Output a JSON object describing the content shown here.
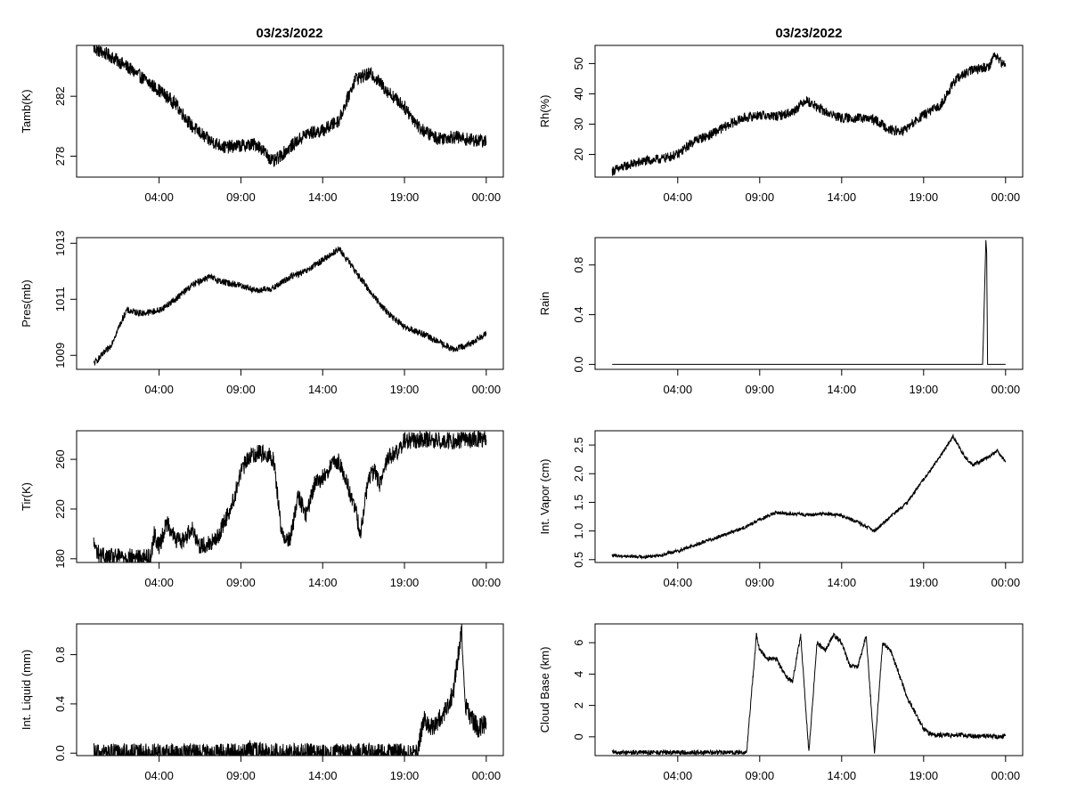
{
  "figure": {
    "titles": [
      "03/23/2022",
      "03/23/2022"
    ]
  },
  "chart_data": [
    {
      "type": "line",
      "ylabel": "Tamb(K)",
      "xlim": [
        0,
        24
      ],
      "ylim": [
        276.6,
        285.4
      ],
      "yticks": [
        278,
        282
      ],
      "xticks": [
        4,
        9,
        14,
        19,
        24
      ],
      "xtick_labels": [
        "04:00",
        "09:00",
        "14:00",
        "19:00",
        "00:00"
      ],
      "x": [
        0,
        1,
        2,
        3,
        4,
        5,
        6,
        7,
        8,
        9,
        10,
        11,
        12,
        13,
        14,
        15,
        16,
        17,
        18,
        19,
        20,
        21,
        22,
        23,
        24
      ],
      "y": [
        285.2,
        284.7,
        284.0,
        283.2,
        282.4,
        281.5,
        280.0,
        279.1,
        278.6,
        278.7,
        278.8,
        277.6,
        278.6,
        279.5,
        279.7,
        280.4,
        283.2,
        283.5,
        282.3,
        281.3,
        279.8,
        279.2,
        279.3,
        279.1,
        279.0
      ],
      "noise": 0.45
    },
    {
      "type": "line",
      "ylabel": "Rh(%)",
      "xlim": [
        0,
        24
      ],
      "ylim": [
        12.5,
        56
      ],
      "yticks": [
        20,
        30,
        40,
        50
      ],
      "xticks": [
        4,
        9,
        14,
        19,
        24
      ],
      "xtick_labels": [
        "04:00",
        "09:00",
        "14:00",
        "19:00",
        "00:00"
      ],
      "x": [
        0,
        1,
        2,
        3,
        4,
        5,
        6,
        7,
        8,
        9,
        10,
        11,
        11.8,
        13,
        14,
        15,
        16,
        17,
        17.7,
        19,
        20,
        21,
        22,
        23,
        23.3,
        24
      ],
      "y": [
        14.5,
        16.5,
        17.8,
        18.5,
        20.0,
        24.5,
        26.5,
        29.5,
        32.0,
        33.0,
        32.5,
        34.0,
        38.0,
        34.0,
        32.0,
        32.0,
        31.5,
        28.0,
        27.5,
        33.0,
        36.0,
        45.0,
        48.0,
        49.0,
        53.0,
        49.0
      ],
      "noise": 1.6
    },
    {
      "type": "line",
      "ylabel": "Pres(mb)",
      "xlim": [
        0,
        24
      ],
      "ylim": [
        1008.5,
        1013.2
      ],
      "yticks": [
        1009,
        1011,
        1013
      ],
      "xticks": [
        4,
        9,
        14,
        19,
        24
      ],
      "xtick_labels": [
        "04:00",
        "09:00",
        "14:00",
        "19:00",
        "00:00"
      ],
      "x": [
        0,
        1,
        2,
        3,
        4,
        5,
        6,
        7,
        8,
        9,
        10,
        11,
        12,
        13,
        14,
        15,
        16,
        17,
        18,
        19,
        20,
        21,
        22,
        23,
        24
      ],
      "y": [
        1008.7,
        1009.3,
        1010.6,
        1010.5,
        1010.6,
        1011.0,
        1011.5,
        1011.8,
        1011.6,
        1011.5,
        1011.3,
        1011.4,
        1011.8,
        1012.0,
        1012.4,
        1012.8,
        1012.0,
        1011.2,
        1010.5,
        1010.0,
        1009.8,
        1009.5,
        1009.2,
        1009.4,
        1009.8
      ],
      "noise": 0.12
    },
    {
      "type": "line",
      "ylabel": "Rain",
      "xlim": [
        0,
        24
      ],
      "ylim": [
        -0.04,
        1.02
      ],
      "yticks": [
        0.0,
        0.4,
        0.8
      ],
      "xticks": [
        4,
        9,
        14,
        19,
        24
      ],
      "xtick_labels": [
        "04:00",
        "09:00",
        "14:00",
        "19:00",
        "00:00"
      ],
      "x": [
        0,
        22.6,
        22.7,
        22.8,
        22.85,
        22.9,
        22.95,
        24
      ],
      "y": [
        0,
        0,
        0.5,
        1.0,
        0.9,
        0,
        0,
        0
      ],
      "noise": 0
    },
    {
      "type": "line",
      "ylabel": "Tir(K)",
      "xlim": [
        0,
        24
      ],
      "ylim": [
        177,
        283
      ],
      "yticks": [
        180,
        220,
        260
      ],
      "xticks": [
        4,
        9,
        14,
        19,
        24
      ],
      "xtick_labels": [
        "04:00",
        "09:00",
        "14:00",
        "19:00",
        "00:00"
      ],
      "x": [
        0,
        0.2,
        0.4,
        1,
        2,
        2.5,
        3,
        3.5,
        3.7,
        4,
        4.5,
        5,
        5.5,
        6,
        6.5,
        7,
        7.5,
        8,
        8.5,
        9,
        9.5,
        10,
        10.5,
        11,
        11.5,
        12,
        12.5,
        13,
        13.5,
        14,
        14.5,
        15,
        15.5,
        16,
        16.3,
        16.8,
        17.2,
        17.5,
        18,
        18.5,
        19,
        20,
        21,
        22,
        23,
        24
      ],
      "y": [
        192,
        186,
        183,
        181,
        182,
        181,
        181,
        182,
        200,
        190,
        210,
        195,
        195,
        205,
        190,
        192,
        195,
        210,
        225,
        250,
        262,
        265,
        265,
        260,
        200,
        195,
        230,
        215,
        240,
        245,
        255,
        258,
        240,
        220,
        200,
        245,
        250,
        240,
        262,
        265,
        275,
        276,
        275,
        275,
        276,
        276
      ],
      "noise": 7
    },
    {
      "type": "line",
      "ylabel": "Int. Vapor (cm)",
      "xlim": [
        0,
        24
      ],
      "ylim": [
        0.45,
        2.75
      ],
      "yticks": [
        0.5,
        1.0,
        1.5,
        2.0,
        2.5
      ],
      "xticks": [
        4,
        9,
        14,
        19,
        24
      ],
      "xtick_labels": [
        "04:00",
        "09:00",
        "14:00",
        "19:00",
        "00:00"
      ],
      "x": [
        0,
        1,
        2,
        3,
        4,
        5,
        6,
        7,
        8,
        9,
        10,
        11,
        12,
        13,
        14,
        15,
        16,
        17,
        18,
        19,
        20,
        20.8,
        21.5,
        22,
        23,
        23.5,
        24
      ],
      "y": [
        0.57,
        0.56,
        0.55,
        0.58,
        0.65,
        0.75,
        0.85,
        0.95,
        1.05,
        1.2,
        1.32,
        1.3,
        1.28,
        1.3,
        1.27,
        1.15,
        1.0,
        1.25,
        1.5,
        1.9,
        2.3,
        2.65,
        2.3,
        2.15,
        2.3,
        2.4,
        2.2
      ],
      "noise": 0.03
    },
    {
      "type": "line",
      "ylabel": "Int. Liquid (mm)",
      "xlim": [
        0,
        24
      ],
      "ylim": [
        -0.02,
        1.05
      ],
      "yticks": [
        0.0,
        0.4,
        0.8
      ],
      "xticks": [
        4,
        9,
        14,
        19,
        24
      ],
      "xtick_labels": [
        "04:00",
        "09:00",
        "14:00",
        "19:00",
        "00:00"
      ],
      "x": [
        0,
        9.2,
        9.5,
        9.8,
        10.1,
        10.3,
        19.8,
        20.2,
        20.5,
        21,
        21.5,
        22,
        22.5,
        22.7,
        23,
        23.5,
        24
      ],
      "y": [
        0,
        0,
        0.03,
        0.01,
        0.02,
        0,
        0,
        0.3,
        0.2,
        0.25,
        0.35,
        0.5,
        1.02,
        0.4,
        0.3,
        0.2,
        0.25
      ],
      "noise": 0.08
    },
    {
      "type": "line",
      "ylabel": "Cloud Base (km)",
      "xlim": [
        0,
        24
      ],
      "ylim": [
        -1.2,
        7.2
      ],
      "yticks": [
        0,
        2,
        4,
        6
      ],
      "xticks": [
        4,
        9,
        14,
        19,
        24
      ],
      "xtick_labels": [
        "04:00",
        "09:00",
        "14:00",
        "19:00",
        "00:00"
      ],
      "x": [
        0,
        8.2,
        8.8,
        9,
        9.5,
        10,
        10.5,
        11,
        11.5,
        12,
        12.5,
        13,
        13.5,
        14,
        14.5,
        15,
        15.5,
        16,
        16.5,
        17,
        17.5,
        18,
        18.5,
        19,
        19.5,
        20,
        20.5,
        21,
        21.5,
        22,
        22.5,
        23,
        23.5,
        24
      ],
      "y": [
        -1,
        -1,
        6.5,
        5.5,
        5.0,
        5.0,
        4.0,
        3.5,
        6.5,
        -1,
        6.0,
        5.5,
        6.5,
        6.0,
        4.5,
        4.5,
        6.5,
        -1,
        6.0,
        5.5,
        4.0,
        2.5,
        1.5,
        0.5,
        0.1,
        0.1,
        0.1,
        0.1,
        0.1,
        0.05,
        0.05,
        0.05,
        0.0,
        0.05
      ],
      "noise": 0.15
    }
  ]
}
